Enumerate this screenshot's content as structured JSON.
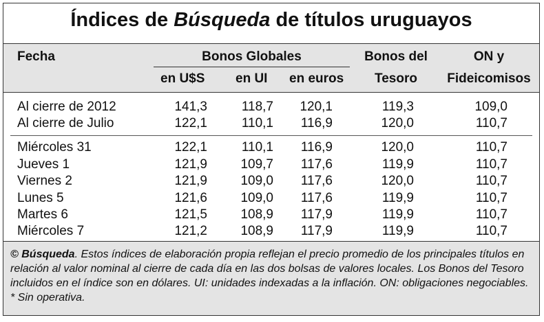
{
  "title": {
    "parts": [
      "Índices de ",
      "Búsqueda",
      " de títulos uruguayos"
    ]
  },
  "header": {
    "fecha": "Fecha",
    "group": "Bonos Globales",
    "sub": [
      "en U$S",
      "en UI",
      "en euros"
    ],
    "tesoro": [
      "Bonos del",
      "Tesoro"
    ],
    "on": [
      "ON y",
      "Fideicomisos"
    ]
  },
  "table": {
    "rows": [
      [
        "Al cierre de 2012",
        "141,3",
        "118,7",
        "120,1",
        "119,3",
        "109,0"
      ],
      [
        "Al cierre de Julio",
        "122,1",
        "110,1",
        "116,9",
        "120,0",
        "110,7"
      ],
      [
        "Miércoles 31",
        "122,1",
        "110,1",
        "116,9",
        "120,0",
        "110,7"
      ],
      [
        "Jueves 1",
        "121,9",
        "109,7",
        "117,6",
        "119,9",
        "110,7"
      ],
      [
        "Viernes 2",
        "121,9",
        "109,0",
        "117,6",
        "120,0",
        "110,7"
      ],
      [
        "Lunes 5",
        "121,6",
        "109,0",
        "117,6",
        "119,9",
        "110,7"
      ],
      [
        "Martes 6",
        "121,5",
        "108,9",
        "117,9",
        "119,9",
        "110,7"
      ],
      [
        "Miércoles 7",
        "121,2",
        "108,9",
        "117,9",
        "119,9",
        "110,7"
      ]
    ]
  },
  "footnote": {
    "parts": [
      "© ",
      "Búsqueda",
      ". Estos índices de elaboración propia reflejan el precio promedio de los principales títulos en relación al valor nominal al cierre de cada día en las dos bolsas de valores locales. Los Bonos del Tesoro incluidos en el índice son en dólares. UI: unidades indexadas a la inflación. ON: obligaciones negociables. * Sin operativa."
    ]
  }
}
